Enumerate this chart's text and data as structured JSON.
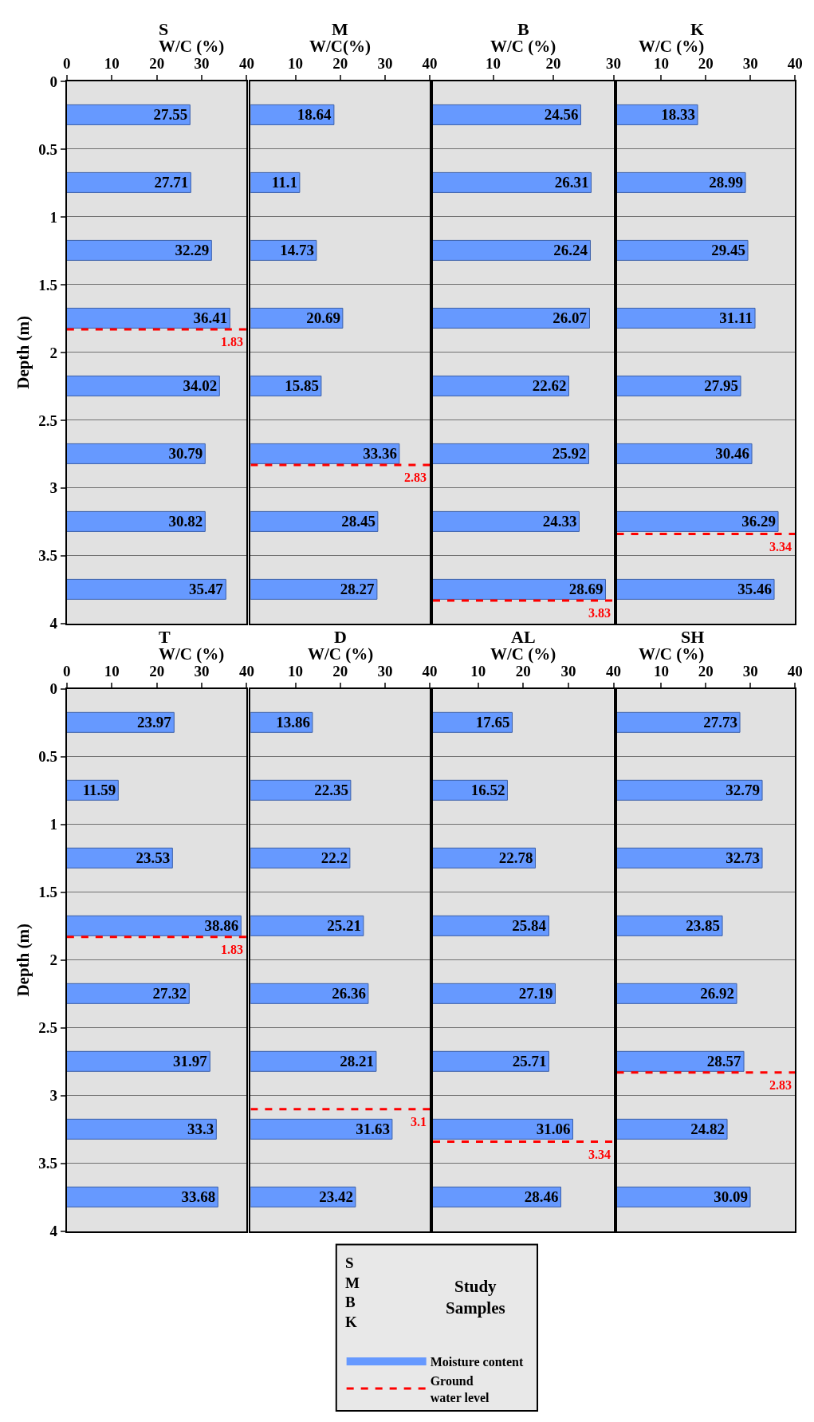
{
  "chart_data": [
    {
      "type": "bar",
      "orientation": "horizontal",
      "title": "S",
      "xlabel": "W/C (%)",
      "ylabel": "Depth (m)",
      "x": [
        0.25,
        0.75,
        1.25,
        1.75,
        2.25,
        2.75,
        3.25,
        3.75
      ],
      "series": [
        {
          "color": "#6699ff",
          "values": [
            27.55,
            27.71,
            32.29,
            36.41,
            34.02,
            30.79,
            30.82,
            35.47
          ]
        }
      ],
      "xlim": [
        0,
        40
      ],
      "xticks": [
        0,
        10,
        20,
        30,
        40
      ],
      "ylim": [
        4,
        0
      ],
      "yticks": [
        0,
        0.5,
        1,
        1.5,
        2,
        2.5,
        3,
        3.5,
        4
      ],
      "grid": "y",
      "data_labels": true,
      "ref_lines": [
        {
          "axis": "y",
          "value": 1.83,
          "label": "1.83",
          "color": "#ff0000",
          "line_style": "dashed"
        }
      ]
    },
    {
      "type": "bar",
      "orientation": "horizontal",
      "title": "M",
      "xlabel": "W/C(%)",
      "x": [
        0.25,
        0.75,
        1.25,
        1.75,
        2.25,
        2.75,
        3.25,
        3.75
      ],
      "series": [
        {
          "color": "#6699ff",
          "values": [
            18.64,
            11.1,
            14.73,
            20.69,
            15.85,
            33.36,
            28.45,
            28.27
          ]
        }
      ],
      "xlim": [
        0,
        40
      ],
      "xticks": [
        10,
        20,
        30,
        40
      ],
      "ylim": [
        4,
        0
      ],
      "yticks": [
        0,
        0.5,
        1,
        1.5,
        2,
        2.5,
        3,
        3.5,
        4
      ],
      "tick_labels": "x",
      "grid": "y",
      "data_labels": true,
      "ref_lines": [
        {
          "axis": "y",
          "value": 2.83,
          "label": "2.83",
          "color": "#ff0000",
          "line_style": "dashed"
        }
      ]
    },
    {
      "type": "bar",
      "orientation": "horizontal",
      "title": "B",
      "xlabel": "W/C (%)",
      "x": [
        0.25,
        0.75,
        1.25,
        1.75,
        2.25,
        2.75,
        3.25,
        3.75
      ],
      "series": [
        {
          "color": "#6699ff",
          "values": [
            24.56,
            26.31,
            26.24,
            26.07,
            22.62,
            25.92,
            24.33,
            28.69
          ]
        }
      ],
      "xlim": [
        0,
        30
      ],
      "xticks": [
        10,
        20,
        30
      ],
      "ylim": [
        4,
        0
      ],
      "yticks": [
        0,
        0.5,
        1,
        1.5,
        2,
        2.5,
        3,
        3.5,
        4
      ],
      "tick_labels": "x",
      "grid": "y",
      "data_labels": true,
      "ref_lines": [
        {
          "axis": "y",
          "value": 3.83,
          "label": "3.83",
          "color": "#ff0000",
          "line_style": "dashed"
        }
      ]
    },
    {
      "type": "bar",
      "orientation": "horizontal",
      "title": "K",
      "xlabel": "W/C (%)",
      "x": [
        0.25,
        0.75,
        1.25,
        1.75,
        2.25,
        2.75,
        3.25,
        3.75
      ],
      "series": [
        {
          "color": "#6699ff",
          "values": [
            18.33,
            28.99,
            29.45,
            31.11,
            27.95,
            30.46,
            36.29,
            35.46
          ]
        }
      ],
      "xlim": [
        0,
        40
      ],
      "xticks": [
        10,
        20,
        30,
        40
      ],
      "ylim": [
        4,
        0
      ],
      "yticks": [
        0,
        0.5,
        1,
        1.5,
        2,
        2.5,
        3,
        3.5,
        4
      ],
      "tick_labels": "x",
      "grid": "y",
      "data_labels": true,
      "ref_lines": [
        {
          "axis": "y",
          "value": 3.34,
          "label": "3.34",
          "color": "#ff0000",
          "line_style": "dashed"
        }
      ]
    },
    {
      "type": "bar",
      "orientation": "horizontal",
      "title": "T",
      "xlabel": "W/C (%)",
      "ylabel": "Depth (m)",
      "x": [
        0.25,
        0.75,
        1.25,
        1.75,
        2.25,
        2.75,
        3.25,
        3.75
      ],
      "series": [
        {
          "color": "#6699ff",
          "values": [
            23.97,
            11.59,
            23.53,
            38.86,
            27.32,
            31.97,
            33.3,
            33.68
          ]
        }
      ],
      "xlim": [
        0,
        40
      ],
      "xticks": [
        0,
        10,
        20,
        30,
        40
      ],
      "ylim": [
        4,
        0
      ],
      "yticks": [
        0,
        0.5,
        1,
        1.5,
        2,
        2.5,
        3,
        3.5,
        4
      ],
      "grid": "y",
      "data_labels": true,
      "ref_lines": [
        {
          "axis": "y",
          "value": 1.83,
          "label": "1.83",
          "color": "#ff0000",
          "line_style": "dashed"
        }
      ]
    },
    {
      "type": "bar",
      "orientation": "horizontal",
      "title": "D",
      "xlabel": "W/C (%)",
      "x": [
        0.25,
        0.75,
        1.25,
        1.75,
        2.25,
        2.75,
        3.25,
        3.75
      ],
      "series": [
        {
          "color": "#6699ff",
          "values": [
            13.86,
            22.35,
            22.2,
            25.21,
            26.36,
            28.21,
            31.63,
            23.42
          ]
        }
      ],
      "xlim": [
        0,
        40
      ],
      "xticks": [
        10,
        20,
        30,
        40
      ],
      "ylim": [
        4,
        0
      ],
      "yticks": [
        0,
        0.5,
        1,
        1.5,
        2,
        2.5,
        3,
        3.5,
        4
      ],
      "tick_labels": "x",
      "grid": "y",
      "data_labels": true,
      "ref_lines": [
        {
          "axis": "y",
          "value": 3.1,
          "label": "3.1",
          "color": "#ff0000",
          "line_style": "dashed"
        }
      ]
    },
    {
      "type": "bar",
      "orientation": "horizontal",
      "title": "AL",
      "xlabel": "W/C (%)",
      "x": [
        0.25,
        0.75,
        1.25,
        1.75,
        2.25,
        2.75,
        3.25,
        3.75
      ],
      "series": [
        {
          "color": "#6699ff",
          "values": [
            17.65,
            16.52,
            22.78,
            25.84,
            27.19,
            25.71,
            31.06,
            28.46
          ]
        }
      ],
      "xlim": [
        0,
        40
      ],
      "xticks": [
        10,
        20,
        30,
        40
      ],
      "ylim": [
        4,
        0
      ],
      "yticks": [
        0,
        0.5,
        1,
        1.5,
        2,
        2.5,
        3,
        3.5,
        4
      ],
      "tick_labels": "x",
      "grid": "y",
      "data_labels": true,
      "ref_lines": [
        {
          "axis": "y",
          "value": 3.34,
          "label": "3.34",
          "color": "#ff0000",
          "line_style": "dashed"
        }
      ]
    },
    {
      "type": "bar",
      "orientation": "horizontal",
      "title": "SH",
      "xlabel": "W/C (%)",
      "x": [
        0.25,
        0.75,
        1.25,
        1.75,
        2.25,
        2.75,
        3.25,
        3.75
      ],
      "series": [
        {
          "color": "#6699ff",
          "values": [
            27.73,
            32.79,
            32.73,
            23.85,
            26.92,
            28.57,
            24.82,
            30.09
          ]
        }
      ],
      "xlim": [
        0,
        40
      ],
      "xticks": [
        10,
        20,
        30,
        40
      ],
      "ylim": [
        4,
        0
      ],
      "yticks": [
        0,
        0.5,
        1,
        1.5,
        2,
        2.5,
        3,
        3.5,
        4
      ],
      "tick_labels": "x",
      "grid": "y",
      "data_labels": true,
      "ref_lines": [
        {
          "axis": "y",
          "value": 2.83,
          "label": "2.83",
          "color": "#ff0000",
          "line_style": "dashed"
        }
      ]
    },
    {
      "type": "other",
      "annotations": [
        "S\nM\nB\nK",
        "Study\nSamples",
        "Moisture content",
        "Ground\nwater level"
      ]
    }
  ]
}
